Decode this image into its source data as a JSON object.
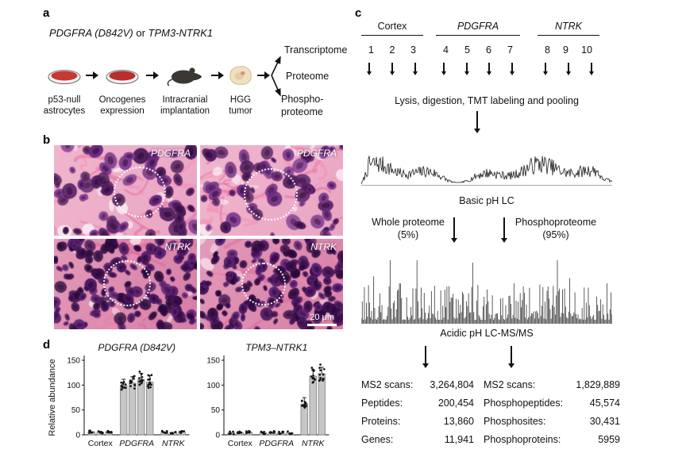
{
  "figure": {
    "panel_a": {
      "label": "a",
      "title_gene1": "PDGFRA (D842V)",
      "title_or": "or",
      "title_gene2": "TPM3-NTRK1",
      "steps": [
        {
          "name": "p53-null astrocytes"
        },
        {
          "name": "Oncogenes expression"
        },
        {
          "name": "Intracranial implantation"
        },
        {
          "name": "HGG tumor"
        }
      ],
      "outputs": [
        {
          "name": "Transcriptome"
        },
        {
          "name": "Proteome"
        },
        {
          "name": "Phospho-proteome"
        }
      ]
    },
    "panel_b": {
      "label": "b",
      "images": [
        {
          "gene": "PDGFRA"
        },
        {
          "gene": "PDGFRA"
        },
        {
          "gene": "NTRK"
        },
        {
          "gene": "NTRK"
        }
      ],
      "scale_bar": "20 μm"
    },
    "panel_c": {
      "label": "c",
      "groups": [
        {
          "name": "Cortex",
          "samples": [
            "1",
            "2",
            "3"
          ]
        },
        {
          "name": "PDGFRA",
          "samples": [
            "4",
            "5",
            "6",
            "7"
          ]
        },
        {
          "name": "NTRK",
          "samples": [
            "8",
            "9",
            "10"
          ]
        }
      ],
      "lysis_label": "Lysis, digestion, TMT labeling and pooling",
      "basic_lc_label": "Basic pH LC",
      "whole_proteome_label": "Whole proteome (5%)",
      "phosphoproteome_label": "Phosphoproteome (95%)",
      "acidic_label": "Acidic pH LC-MS/MS",
      "stats_left": [
        {
          "label": "MS2 scans:",
          "value": "3,264,804"
        },
        {
          "label": "Peptides:",
          "value": "200,454"
        },
        {
          "label": "Proteins:",
          "value": "13,860"
        },
        {
          "label": "Genes:",
          "value": "11,941"
        }
      ],
      "stats_right": [
        {
          "label": "MS2 scans:",
          "value": "1,829,889"
        },
        {
          "label": "Phosphopeptides:",
          "value": "45,574"
        },
        {
          "label": "Phosphosites:",
          "value": "30,431"
        },
        {
          "label": "Phosphoproteins:",
          "value": "5959"
        }
      ]
    },
    "panel_d": {
      "label": "d"
    }
  },
  "chart_data": [
    {
      "type": "bar",
      "title": "PDGFRA (D842V)",
      "ylabel": "Relative abundance",
      "ylim": [
        0,
        150
      ],
      "yticks": [
        0,
        50,
        100,
        150
      ],
      "groups": [
        {
          "name": "Cortex",
          "italic": false,
          "values": [
            6,
            5,
            6
          ]
        },
        {
          "name": "PDGFRA",
          "italic": true,
          "values": [
            99,
            104,
            111,
            106
          ]
        },
        {
          "name": "NTRK",
          "italic": true,
          "values": [
            6,
            5,
            6
          ]
        }
      ]
    },
    {
      "type": "bar",
      "title": "TPM3–NTRK1",
      "ylabel": "",
      "ylim": [
        0,
        150
      ],
      "yticks": [
        0,
        50,
        100,
        150
      ],
      "groups": [
        {
          "name": "Cortex",
          "italic": false,
          "values": [
            4,
            4,
            5
          ]
        },
        {
          "name": "PDGFRA",
          "italic": true,
          "values": [
            4,
            5,
            4,
            4
          ]
        },
        {
          "name": "NTRK",
          "italic": true,
          "values": [
            62,
            118,
            123
          ]
        }
      ]
    }
  ]
}
